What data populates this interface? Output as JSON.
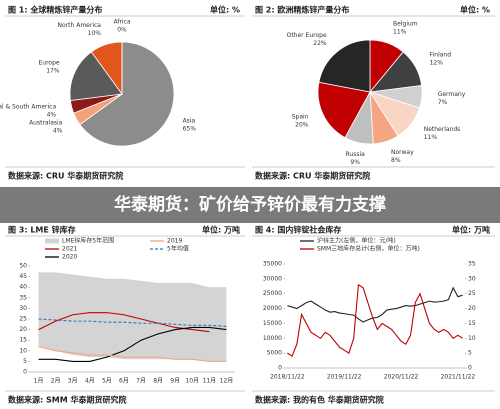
{
  "banner": "华泰期货：矿价给予锌价最有力支撑",
  "chart_data": [
    {
      "type": "pie",
      "title": "图 1: 全球精炼锌产量分布",
      "unit": "单位: %",
      "source": "数据来源: CRU 华泰期货研究院",
      "categories": [
        "Asia",
        "Australasia",
        "Central & South America",
        "Europe",
        "North America",
        "Africa"
      ],
      "values": [
        65,
        4,
        4,
        17,
        10,
        0
      ],
      "value_labels": [
        "65%",
        "4%",
        "4%",
        "17%",
        "10%",
        "0%"
      ],
      "colors": [
        "#8c8c8c",
        "#f4a07a",
        "#8b1a1a",
        "#5a5a5a",
        "#e0561c",
        "#c00000"
      ],
      "label_colors": [
        "#777777",
        "#e0561c",
        "#c00000",
        "#555555",
        "#e0561c",
        "#c00000"
      ]
    },
    {
      "type": "pie",
      "title": "图 2: 欧洲精炼锌产量分布",
      "unit": "单位: %",
      "source": "数据来源: CRU 华泰期货研究院",
      "categories": [
        "Belgium",
        "Finland",
        "Germany",
        "Netherlands",
        "Norway",
        "Russia",
        "Spain",
        "Other Europe"
      ],
      "values": [
        11,
        12,
        7,
        11,
        8,
        9,
        20,
        22
      ],
      "value_labels": [
        "11%",
        "12%",
        "7%",
        "11%",
        "8%",
        "9%",
        "20%",
        "22%"
      ],
      "colors": [
        "#c00000",
        "#404040",
        "#d0d0d0",
        "#f8d5c4",
        "#f4a582",
        "#bfbfbf",
        "#c00000",
        "#262626"
      ],
      "label_colors": [
        "#c00000",
        "#333333",
        "#777777",
        "#f4a582",
        "#e0561c",
        "#999999",
        "#c00000",
        "#333333"
      ]
    },
    {
      "type": "line",
      "title": "图 3: LME 锌库存",
      "unit": "单位: 万吨",
      "source": "数据来源: SMM 华泰期货研究院",
      "categories": [
        "1月",
        "2月",
        "3月",
        "4月",
        "5月",
        "6月",
        "7月",
        "8月",
        "9月",
        "10月",
        "11月",
        "12月"
      ],
      "ylim": [
        0,
        50
      ],
      "yticks": [
        0,
        5,
        10,
        15,
        20,
        25,
        30,
        35,
        40,
        45,
        50
      ],
      "series": [
        {
          "name": "LME锌库存5年范围",
          "color": "#d4d4d4",
          "low": [
            12,
            10,
            8,
            7,
            7,
            6,
            6,
            6,
            6,
            6,
            5,
            5
          ],
          "high": [
            47,
            47,
            46,
            45,
            44,
            44,
            43,
            42,
            42,
            42,
            40,
            40
          ]
        },
        {
          "name": "2021",
          "color": "#c00000",
          "values": [
            20,
            24,
            27,
            28,
            28,
            27,
            25,
            23,
            21,
            20,
            19,
            null
          ]
        },
        {
          "name": "2020",
          "color": "#000000",
          "values": [
            6,
            6,
            5,
            5,
            7,
            10,
            15,
            18,
            20,
            21,
            21,
            20
          ]
        },
        {
          "name": "2019",
          "color": "#f4a582",
          "values": [
            12,
            10,
            9,
            8,
            8,
            7,
            7,
            7,
            6,
            6,
            5,
            5
          ]
        },
        {
          "name": "5年均值",
          "color": "#2e75b6",
          "dash": true,
          "values": [
            25,
            24.5,
            24,
            24,
            23.5,
            23.5,
            23,
            23,
            22.5,
            22,
            22,
            21.5
          ]
        }
      ]
    },
    {
      "type": "line",
      "title": "图 4: 国内锌锭社会库存",
      "unit": "单位: 万吨",
      "source": "数据来源: 我的有色 华泰期货研究院",
      "categories": [
        "2018/11/22",
        null,
        null,
        null,
        null,
        null,
        null,
        null,
        null,
        null,
        null,
        null,
        "2019/11/22",
        null,
        null,
        null,
        null,
        null,
        null,
        null,
        null,
        null,
        null,
        null,
        "2020/11/22",
        null,
        null,
        null,
        null,
        null,
        null,
        null,
        null,
        null,
        null,
        null,
        "2021/11/22",
        null
      ],
      "ylim": [
        0,
        35000
      ],
      "yticks": [
        0,
        5000,
        10000,
        15000,
        20000,
        25000,
        30000,
        35000
      ],
      "y2lim": [
        0,
        35
      ],
      "y2ticks": [
        0,
        5,
        10,
        15,
        20,
        25,
        30,
        35
      ],
      "series": [
        {
          "name": "沪锌主力(左侧，单位：元/吨)",
          "color": "#222222",
          "values": [
            21000,
            20500,
            20000,
            21000,
            22000,
            22500,
            21500,
            20500,
            19500,
            18800,
            19000,
            18500,
            18300,
            18000,
            17800,
            16500,
            15500,
            16200,
            16800,
            17000,
            18000,
            19500,
            19800,
            20000,
            20500,
            21000,
            20800,
            21000,
            21500,
            22000,
            22500,
            22200,
            22300,
            22500,
            23000,
            27000,
            24000,
            24500
          ]
        },
        {
          "name": "SMM三地库存总计(右侧，单位：万吨)",
          "color": "#c00000",
          "axis": "y2",
          "values": [
            5,
            4,
            8,
            18,
            15,
            12,
            11,
            10,
            12,
            11,
            9,
            7,
            6,
            5,
            10,
            28,
            27,
            22,
            17,
            13,
            15,
            14,
            13,
            11,
            9,
            8,
            11,
            22,
            25,
            20,
            15,
            13,
            12,
            13,
            12,
            10,
            11,
            10
          ]
        }
      ]
    }
  ]
}
